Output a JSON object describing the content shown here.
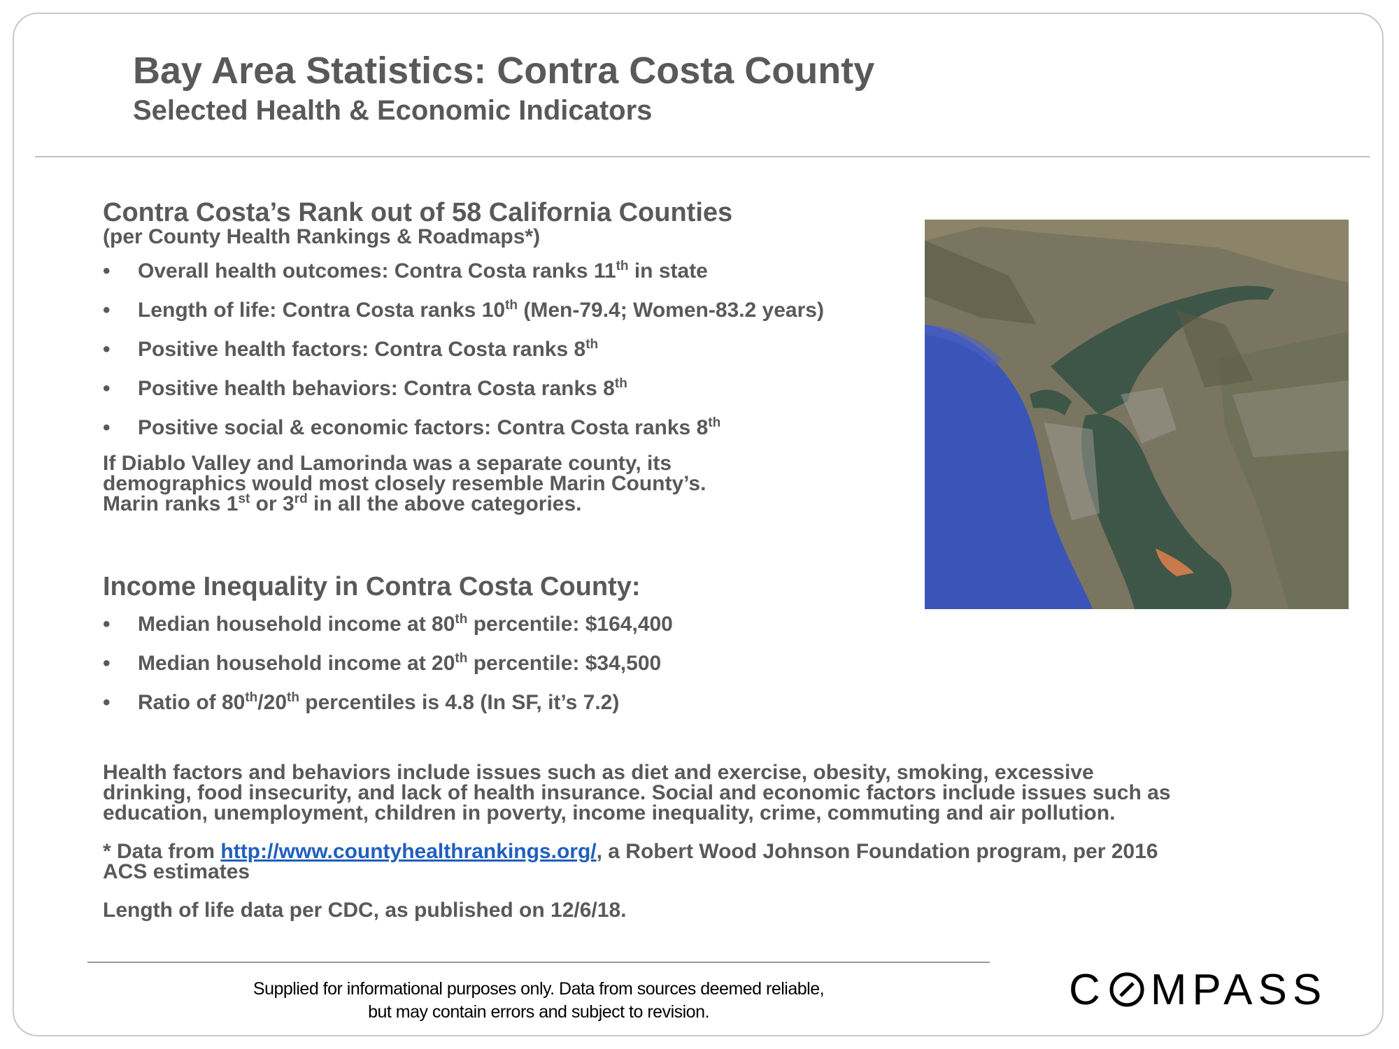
{
  "header": {
    "title": "Bay Area Statistics: Contra Costa County",
    "subtitle": "Selected Health & Economic Indicators"
  },
  "rank_section": {
    "heading": "Contra Costa’s Rank out of 58 California Counties",
    "subheading": "(per County Health Rankings & Roadmaps*)",
    "bullets": [
      {
        "pre": "Overall health outcomes: Contra Costa ranks 11",
        "sup": "th",
        "post": " in state"
      },
      {
        "pre": "Length of life: Contra Costa ranks 10",
        "sup": "th",
        "post": " (Men-79.4; Women-83.2 years)"
      },
      {
        "pre": "Positive health factors: Contra Costa ranks 8",
        "sup": "th",
        "post": ""
      },
      {
        "pre": "Positive health behaviors: Contra Costa ranks 8",
        "sup": "th",
        "post": ""
      },
      {
        "pre": "Positive social & economic factors: Contra Costa ranks 8",
        "sup": "th",
        "post": ""
      }
    ],
    "paragraph": {
      "line1": "If Diablo Valley and Lamorinda was a separate county, its",
      "line2": "demographics would most closely resemble Marin County’s.",
      "line3_a": "Marin ranks 1",
      "line3_sup1": "st",
      "line3_b": " or 3",
      "line3_sup2": "rd",
      "line3_c": " in all the above categories."
    }
  },
  "income_section": {
    "heading": "Income Inequality in Contra Costa County:",
    "bullet1": {
      "pre": "Median household income at 80",
      "sup": "th",
      "post": " percentile: $164,400"
    },
    "bullet2": {
      "pre": "Median household income at 20",
      "sup": "th",
      "post": " percentile:  $34,500"
    },
    "bullet3": {
      "a": "Ratio of 80",
      "sup1": "th",
      "b": "/20",
      "sup2": "th",
      "c": " percentiles is 4.8 (In SF, it’s 7.2)"
    }
  },
  "notes": {
    "health_line1": " Health factors and behaviors include issues such as diet and exercise, obesity, smoking, excessive",
    "health_line2": "drinking, food insecurity, and lack of health insurance. Social and economic factors include issues such as",
    "health_line3": "education, unemployment, children in poverty, income inequality, crime, commuting and air pollution.",
    "data_prefix": "* Data from ",
    "data_link": "http://www.countyhealthrankings.org/",
    "data_suffix": ", a Robert Wood Johnson Foundation program, per 2016",
    "data_line2": "ACS estimates",
    "cdc": "Length of life data per CDC, as published on 12/6/18."
  },
  "footer": {
    "disclaimer_line1": "Supplied for informational purposes only. Data from sources deemed reliable,",
    "disclaimer_line2": "but may contain errors and subject to revision.",
    "logo_text_before": "C",
    "logo_text_after": "MPASS"
  },
  "colors": {
    "text": "#595959",
    "link": "#1f5fbf",
    "ocean": "#3b54b8",
    "bay": "#3d5648",
    "land": "#7a7560"
  },
  "icons": {
    "map": "satellite-map-image",
    "logo_o": "compass-o-logo"
  }
}
